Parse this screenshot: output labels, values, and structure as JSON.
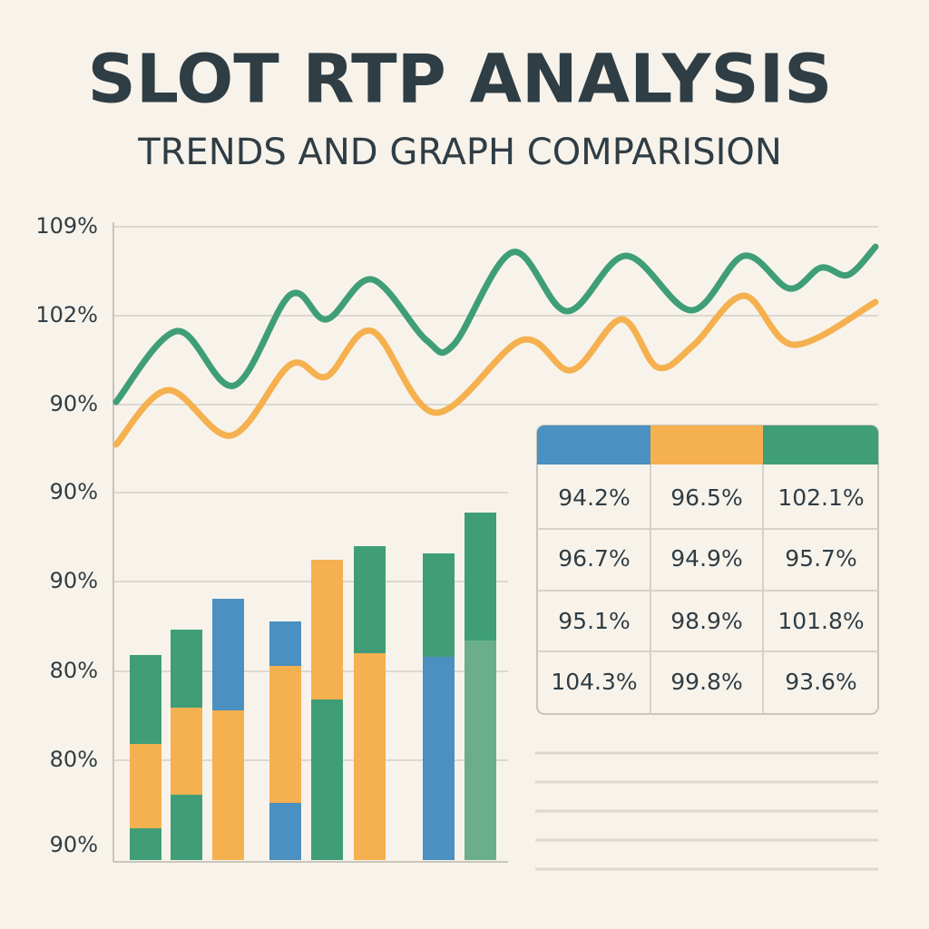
{
  "header": {
    "title": "SLOT RTP ANALYSIS",
    "subtitle": "TRENDS AND GRAPH COMPARISION"
  },
  "axis_labels": [
    "109%",
    "102%",
    "90%",
    "90%",
    "90%",
    "80%",
    "80%",
    "90%"
  ],
  "table": {
    "rows": [
      [
        "94.2%",
        "96.5%",
        "102.1%"
      ],
      [
        "96.7%",
        "94.9%",
        "95.7%"
      ],
      [
        "95.1%",
        "98.9%",
        "101.8%"
      ],
      [
        "104.3%",
        "99.8%",
        "93.6%"
      ]
    ]
  }
}
